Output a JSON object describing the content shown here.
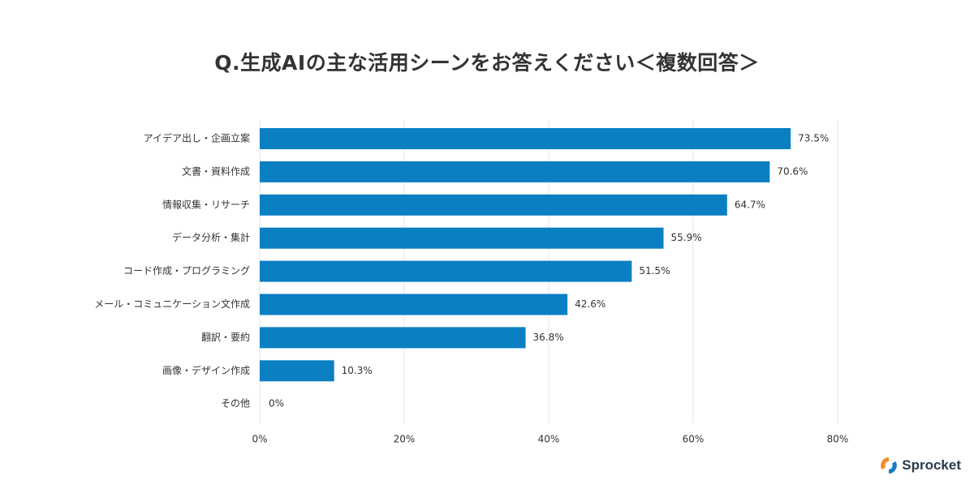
{
  "chart_data": {
    "type": "bar",
    "orientation": "horizontal",
    "title": "Q.生成AIの主な活用シーンをお答えください＜複数回答＞",
    "categories": [
      "アイデア出し・企画立案",
      "文書・資料作成",
      "情報収集・リサーチ",
      "データ分析・集計",
      "コード作成・プログラミング",
      "メール・コミュニケーション文作成",
      "翻訳・要約",
      "画像・デザイン作成",
      "その他"
    ],
    "values": [
      73.5,
      70.6,
      64.7,
      55.9,
      51.5,
      42.6,
      36.8,
      10.3,
      0
    ],
    "value_labels": [
      "73.5%",
      "70.6%",
      "64.7%",
      "55.9%",
      "51.5%",
      "42.6%",
      "36.8%",
      "10.3%",
      "0%"
    ],
    "xlim": [
      0,
      80
    ],
    "xticks": [
      0,
      20,
      40,
      60,
      80
    ],
    "xtick_labels": [
      "0%",
      "20%",
      "40%",
      "60%",
      "80%"
    ],
    "xlabel": "",
    "ylabel": "",
    "grid": true,
    "bar_color": "#0a7fc2"
  },
  "brand": {
    "name": "Sprocket",
    "colors": {
      "orange": "#f28c28",
      "blue": "#1a7bc4"
    }
  }
}
